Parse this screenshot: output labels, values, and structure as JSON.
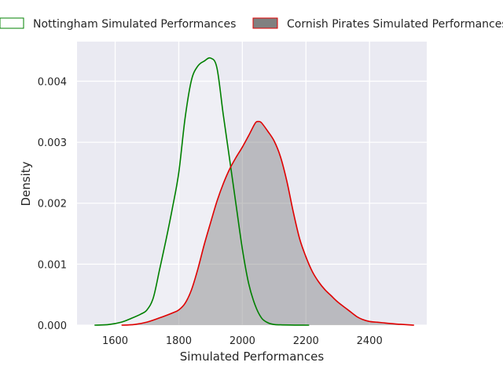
{
  "chart_data": {
    "type": "area",
    "title": "",
    "xlabel": "Simulated Performances",
    "ylabel": "Density",
    "xlim": [
      1480,
      2580
    ],
    "ylim": [
      0,
      0.00465
    ],
    "grid": true,
    "legend_position": "top",
    "x_ticks": [
      1600,
      1800,
      2000,
      2200,
      2400
    ],
    "x_tick_labels": [
      "1600",
      "1800",
      "2000",
      "2200",
      "2400"
    ],
    "y_ticks": [
      0,
      0.001,
      0.002,
      0.003,
      0.004
    ],
    "y_tick_labels": [
      "0.000",
      "0.001",
      "0.002",
      "0.003",
      "0.004"
    ],
    "colors": {
      "plot_background": "#eaeaf2",
      "grid": "#ffffff"
    },
    "series": [
      {
        "name": "Nottingham Simulated Performances",
        "line_color": "#008000",
        "fill_color": "#ffffff",
        "fill_opacity": 0.25,
        "x": [
          1535,
          1580,
          1620,
          1650,
          1680,
          1700,
          1720,
          1740,
          1760,
          1780,
          1800,
          1820,
          1840,
          1860,
          1880,
          1900,
          1920,
          1940,
          1960,
          1980,
          2000,
          2020,
          2040,
          2060,
          2080,
          2100,
          2120,
          2150,
          2180,
          2210
        ],
        "y": [
          0,
          1e-05,
          5e-05,
          0.00011,
          0.00018,
          0.00025,
          0.00045,
          0.00092,
          0.0014,
          0.00192,
          0.0025,
          0.0034,
          0.00402,
          0.00425,
          0.00433,
          0.00438,
          0.00422,
          0.00345,
          0.00272,
          0.00198,
          0.00125,
          0.00068,
          0.00033,
          0.00012,
          4e-05,
          1e-05,
          5e-06,
          2e-06,
          1e-06,
          0
        ]
      },
      {
        "name": "Cornish Pirates Simulated Performances",
        "line_color": "#e00000",
        "fill_color": "#808080",
        "fill_opacity": 0.45,
        "x": [
          1620,
          1660,
          1700,
          1740,
          1780,
          1800,
          1820,
          1840,
          1860,
          1880,
          1900,
          1920,
          1940,
          1960,
          1980,
          2000,
          2020,
          2040,
          2050,
          2060,
          2080,
          2100,
          2120,
          2140,
          2160,
          2180,
          2200,
          2220,
          2240,
          2260,
          2280,
          2300,
          2330,
          2360,
          2380,
          2400,
          2420,
          2440,
          2480,
          2540
        ],
        "y": [
          0,
          1e-05,
          5e-05,
          0.00012,
          0.0002,
          0.00025,
          0.00036,
          0.00058,
          0.00092,
          0.00132,
          0.00168,
          0.00203,
          0.00232,
          0.00256,
          0.00275,
          0.00292,
          0.00311,
          0.00331,
          0.00334,
          0.00332,
          0.00318,
          0.00302,
          0.00276,
          0.00236,
          0.00186,
          0.00142,
          0.00112,
          0.00088,
          0.00071,
          0.00058,
          0.00048,
          0.00038,
          0.00026,
          0.00014,
          9e-05,
          6e-05,
          5e-05,
          4e-05,
          2e-05,
          0
        ]
      }
    ]
  }
}
